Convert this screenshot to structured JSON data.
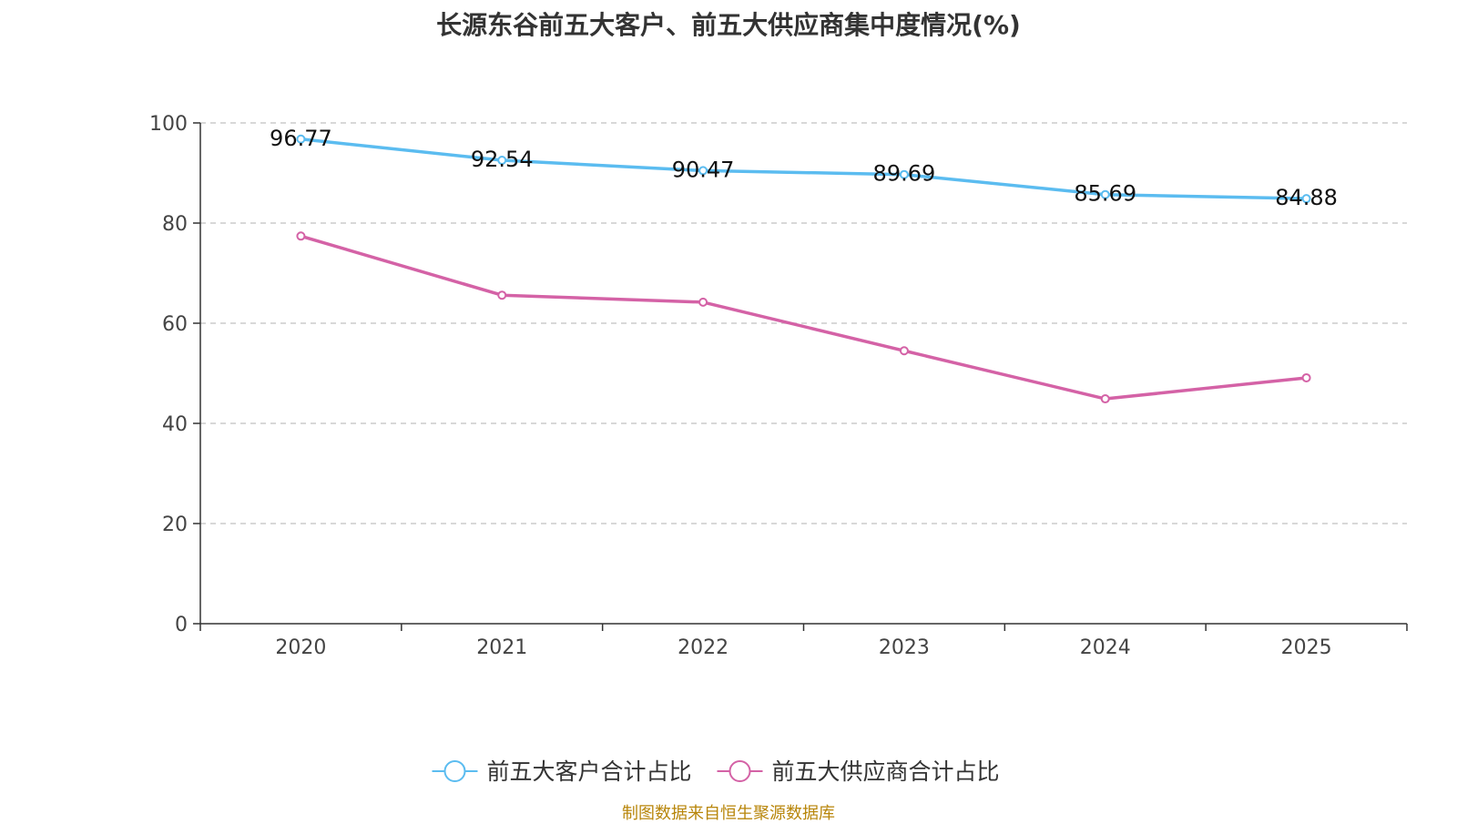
{
  "chart_data": {
    "type": "line",
    "title": "长源东谷前五大客户、前五大供应商集中度情况(%)",
    "categories": [
      "2020",
      "2021",
      "2022",
      "2023",
      "2024",
      "2025"
    ],
    "ylim": [
      0,
      100
    ],
    "yticks": [
      0,
      20,
      40,
      60,
      80,
      100
    ],
    "grid": true,
    "legend_position": "bottom-center",
    "series": [
      {
        "name": "前五大客户合计占比",
        "color": "#5bbcf0",
        "values": [
          96.77,
          92.54,
          90.47,
          89.69,
          85.69,
          84.88
        ],
        "labels": [
          "96.77",
          "92.54",
          "90.47",
          "89.69",
          "85.69",
          "84.88"
        ]
      },
      {
        "name": "前五大供应商合计占比",
        "color": "#d462a6",
        "values": [
          77.4,
          65.6,
          64.2,
          54.5,
          44.9,
          49.1
        ]
      }
    ]
  },
  "footer": {
    "source": "制图数据来自恒生聚源数据库"
  }
}
